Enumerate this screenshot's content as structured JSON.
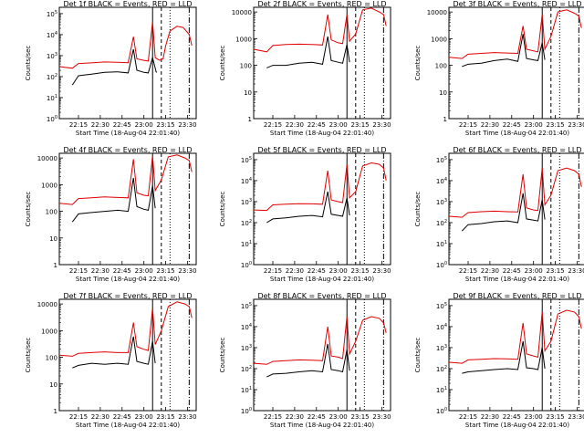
{
  "colors": {
    "events": "#000000",
    "lld": "#e00000",
    "axes": "#000000",
    "background": "#ffffff"
  },
  "xlabel": "Start Time (18-Aug-04 22:01:40)",
  "ylabel": "Counts/sec",
  "chart_data": [
    {
      "type": "line",
      "title": "Det 1f BLACK = Events, RED = LLD",
      "x_ticks": [
        "22:15",
        "22:30",
        "22:45",
        "23:00",
        "23:15",
        "23:30"
      ],
      "y_ticks": [
        "10^0",
        "10^1",
        "10^2",
        "10^3",
        "10^4",
        "10^5"
      ],
      "ylim": [
        1,
        200000
      ],
      "yscale": "log",
      "series": [
        {
          "name": "Events",
          "x": [
            22.18,
            22.25,
            22.4,
            22.55,
            22.7,
            22.82,
            22.88,
            22.92,
            23.0,
            23.05,
            23.1,
            23.14,
            23.15
          ],
          "values": [
            40,
            110,
            130,
            160,
            170,
            150,
            2000,
            200,
            160,
            150,
            800,
            170,
            160
          ]
        },
        {
          "name": "LLD",
          "x": [
            22.03,
            22.18,
            22.25,
            22.4,
            22.55,
            22.7,
            22.82,
            22.88,
            22.92,
            23.0,
            23.05,
            23.1,
            23.13,
            23.18,
            23.22,
            23.25,
            23.3,
            23.38,
            23.45,
            23.52,
            23.55
          ],
          "values": [
            300,
            250,
            420,
            450,
            500,
            480,
            460,
            8000,
            700,
            600,
            550,
            40000,
            800,
            600,
            700,
            3000,
            15000,
            25000,
            22000,
            10000,
            3000
          ]
        }
      ],
      "markers": [
        22.03,
        23.1,
        23.2,
        23.3,
        23.52
      ]
    },
    {
      "type": "line",
      "title": "Det 2f BLACK = Events, RED = LLD",
      "x_ticks": [
        "22:15",
        "22:30",
        "22:45",
        "23:00",
        "23:15",
        "23:30"
      ],
      "y_ticks": [
        "1",
        "10",
        "100",
        "1000",
        "10000"
      ],
      "ylim": [
        1,
        15000
      ],
      "yscale": "log",
      "series": [
        {
          "name": "Events",
          "x": [
            22.18,
            22.25,
            22.4,
            22.55,
            22.7,
            22.82,
            22.88,
            22.92,
            23.0,
            23.05,
            23.1,
            23.13
          ],
          "values": [
            80,
            100,
            100,
            120,
            130,
            110,
            1200,
            150,
            130,
            120,
            600,
            130
          ]
        },
        {
          "name": "LLD",
          "x": [
            22.03,
            22.18,
            22.25,
            22.4,
            22.55,
            22.7,
            22.82,
            22.88,
            22.92,
            23.0,
            23.05,
            23.1,
            23.13,
            23.2,
            23.28,
            23.38,
            23.47,
            23.52,
            23.55
          ],
          "values": [
            400,
            320,
            550,
            600,
            620,
            600,
            580,
            8000,
            900,
            700,
            650,
            8000,
            800,
            1500,
            12000,
            14000,
            10000,
            8000,
            3000
          ]
        }
      ],
      "markers": [
        22.03,
        23.1,
        23.2,
        23.3,
        23.52
      ]
    },
    {
      "type": "line",
      "title": "Det 3f BLACK = Events, RED = LLD",
      "x_ticks": [
        "22:15",
        "22:30",
        "22:45",
        "23:00",
        "23:15",
        "23:30"
      ],
      "y_ticks": [
        "1",
        "10",
        "100",
        "1000",
        "10000"
      ],
      "ylim": [
        1,
        15000
      ],
      "yscale": "log",
      "series": [
        {
          "name": "Events",
          "x": [
            22.18,
            22.25,
            22.4,
            22.55,
            22.7,
            22.82,
            22.88,
            22.92,
            23.0,
            23.05,
            23.1,
            23.13
          ],
          "values": [
            90,
            110,
            120,
            150,
            170,
            140,
            1500,
            180,
            160,
            150,
            700,
            160
          ]
        },
        {
          "name": "LLD",
          "x": [
            22.03,
            22.18,
            22.25,
            22.4,
            22.55,
            22.7,
            22.82,
            22.88,
            22.92,
            23.0,
            23.05,
            23.1,
            23.13,
            23.2,
            23.28,
            23.38,
            23.47,
            23.52,
            23.55
          ],
          "values": [
            200,
            180,
            260,
            280,
            300,
            290,
            280,
            3000,
            400,
            350,
            320,
            8000,
            400,
            1200,
            10000,
            12000,
            9000,
            7000,
            2500
          ]
        }
      ],
      "markers": [
        22.03,
        23.1,
        23.2,
        23.3,
        23.52
      ]
    },
    {
      "type": "line",
      "title": "Det 4f BLACK = Events, RED = LLD",
      "x_ticks": [
        "22:15",
        "22:30",
        "22:45",
        "23:00",
        "23:15",
        "23:30"
      ],
      "y_ticks": [
        "1",
        "10",
        "100",
        "1000",
        "10000"
      ],
      "ylim": [
        1,
        15000
      ],
      "yscale": "log",
      "series": [
        {
          "name": "Events",
          "x": [
            22.18,
            22.25,
            22.4,
            22.55,
            22.7,
            22.82,
            22.88,
            22.92,
            23.0,
            23.05,
            23.1,
            23.13
          ],
          "values": [
            40,
            80,
            90,
            100,
            110,
            100,
            1800,
            150,
            120,
            110,
            900,
            130
          ]
        },
        {
          "name": "LLD",
          "x": [
            22.03,
            22.18,
            22.25,
            22.4,
            22.55,
            22.7,
            22.82,
            22.88,
            22.92,
            23.0,
            23.05,
            23.1,
            23.13,
            23.2,
            23.28,
            23.38,
            23.47,
            23.52,
            23.55
          ],
          "values": [
            200,
            180,
            300,
            320,
            350,
            330,
            320,
            9000,
            500,
            400,
            380,
            12000,
            600,
            1500,
            11000,
            13000,
            10000,
            8000,
            3000
          ]
        }
      ],
      "markers": [
        22.03,
        23.1,
        23.2,
        23.3,
        23.52
      ]
    },
    {
      "type": "line",
      "title": "Det 5f BLACK = Events, RED = LLD",
      "x_ticks": [
        "22:15",
        "22:30",
        "22:45",
        "23:00",
        "23:15",
        "23:30"
      ],
      "y_ticks": [
        "10^0",
        "10^1",
        "10^2",
        "10^3",
        "10^4",
        "10^5"
      ],
      "ylim": [
        1,
        200000
      ],
      "yscale": "log",
      "series": [
        {
          "name": "Events",
          "x": [
            22.18,
            22.25,
            22.4,
            22.55,
            22.7,
            22.82,
            22.88,
            22.92,
            23.0,
            23.05,
            23.1,
            23.13
          ],
          "values": [
            100,
            150,
            170,
            200,
            220,
            190,
            3000,
            250,
            220,
            200,
            1500,
            220
          ]
        },
        {
          "name": "LLD",
          "x": [
            22.03,
            22.18,
            22.25,
            22.4,
            22.55,
            22.7,
            22.82,
            22.88,
            22.92,
            23.0,
            23.05,
            23.1,
            23.13,
            23.2,
            23.28,
            23.38,
            23.47,
            23.52,
            23.55
          ],
          "values": [
            400,
            380,
            700,
            750,
            800,
            780,
            750,
            30000,
            1200,
            1000,
            900,
            60000,
            1500,
            3000,
            50000,
            70000,
            60000,
            40000,
            10000
          ]
        }
      ],
      "markers": [
        22.03,
        23.1,
        23.2,
        23.3,
        23.52
      ]
    },
    {
      "type": "line",
      "title": "Det 6f BLACK = Events, RED = LLD",
      "x_ticks": [
        "22:15",
        "22:30",
        "22:45",
        "23:00",
        "23:15",
        "23:30"
      ],
      "y_ticks": [
        "10^0",
        "10^1",
        "10^2",
        "10^3",
        "10^4",
        "10^5"
      ],
      "ylim": [
        1,
        200000
      ],
      "yscale": "log",
      "series": [
        {
          "name": "Events",
          "x": [
            22.18,
            22.25,
            22.4,
            22.55,
            22.7,
            22.82,
            22.88,
            22.92,
            23.0,
            23.05,
            23.1,
            23.13
          ],
          "values": [
            40,
            80,
            90,
            110,
            120,
            100,
            2500,
            150,
            130,
            120,
            1200,
            140
          ]
        },
        {
          "name": "LLD",
          "x": [
            22.03,
            22.18,
            22.25,
            22.4,
            22.55,
            22.7,
            22.82,
            22.88,
            22.92,
            23.0,
            23.05,
            23.1,
            23.13,
            23.2,
            23.28,
            23.38,
            23.47,
            23.52,
            23.55
          ],
          "values": [
            200,
            180,
            300,
            330,
            350,
            330,
            320,
            20000,
            500,
            400,
            380,
            40000,
            700,
            2000,
            30000,
            40000,
            30000,
            20000,
            5000
          ]
        }
      ],
      "markers": [
        22.03,
        23.1,
        23.2,
        23.3,
        23.52
      ]
    },
    {
      "type": "line",
      "title": "Det 7f BLACK = Events, RED = LLD",
      "x_ticks": [
        "22:15",
        "22:30",
        "22:45",
        "23:00",
        "23:15",
        "23:30"
      ],
      "y_ticks": [
        "1",
        "10",
        "100",
        "1000",
        "10000"
      ],
      "ylim": [
        1,
        15000
      ],
      "yscale": "log",
      "series": [
        {
          "name": "Events",
          "x": [
            22.18,
            22.25,
            22.4,
            22.55,
            22.7,
            22.82,
            22.88,
            22.92,
            23.0,
            23.05,
            23.1,
            23.13
          ],
          "values": [
            40,
            50,
            60,
            55,
            60,
            55,
            600,
            70,
            60,
            55,
            400,
            60
          ]
        },
        {
          "name": "LLD",
          "x": [
            22.03,
            22.18,
            22.25,
            22.4,
            22.55,
            22.7,
            22.82,
            22.88,
            22.92,
            23.0,
            23.05,
            23.1,
            23.13,
            23.2,
            23.28,
            23.38,
            23.47,
            23.52,
            23.55
          ],
          "values": [
            120,
            110,
            140,
            150,
            160,
            150,
            150,
            2000,
            250,
            200,
            180,
            7000,
            300,
            1000,
            8000,
            12000,
            10000,
            8000,
            3000
          ]
        }
      ],
      "markers": [
        22.03,
        23.1,
        23.2,
        23.3,
        23.52
      ]
    },
    {
      "type": "line",
      "title": "Det 8f BLACK = Events, RED = LLD",
      "x_ticks": [
        "22:15",
        "22:30",
        "22:45",
        "23:00",
        "23:15",
        "23:30"
      ],
      "y_ticks": [
        "10^0",
        "10^1",
        "10^2",
        "10^3",
        "10^4",
        "10^5"
      ],
      "ylim": [
        1,
        200000
      ],
      "yscale": "log",
      "series": [
        {
          "name": "Events",
          "x": [
            22.18,
            22.25,
            22.4,
            22.55,
            22.7,
            22.82,
            22.88,
            22.92,
            23.0,
            23.05,
            23.1,
            23.13
          ],
          "values": [
            40,
            55,
            60,
            70,
            80,
            70,
            1500,
            90,
            80,
            70,
            800,
            80
          ]
        },
        {
          "name": "LLD",
          "x": [
            22.03,
            22.18,
            22.25,
            22.4,
            22.55,
            22.7,
            22.82,
            22.88,
            22.92,
            23.0,
            23.05,
            23.1,
            23.13,
            23.2,
            23.28,
            23.38,
            23.47,
            23.52,
            23.55
          ],
          "values": [
            180,
            160,
            220,
            240,
            260,
            250,
            240,
            10000,
            400,
            350,
            300,
            30000,
            500,
            2000,
            20000,
            30000,
            25000,
            15000,
            5000
          ]
        }
      ],
      "markers": [
        22.03,
        23.1,
        23.2,
        23.3,
        23.52
      ]
    },
    {
      "type": "line",
      "title": "Det 9f BLACK = Events, RED = LLD",
      "x_ticks": [
        "22:15",
        "22:30",
        "22:45",
        "23:00",
        "23:15",
        "23:30"
      ],
      "y_ticks": [
        "10^0",
        "10^1",
        "10^2",
        "10^3",
        "10^4",
        "10^5"
      ],
      "ylim": [
        1,
        200000
      ],
      "yscale": "log",
      "series": [
        {
          "name": "Events",
          "x": [
            22.18,
            22.25,
            22.4,
            22.55,
            22.7,
            22.82,
            22.88,
            22.92,
            23.0,
            23.05,
            23.1,
            23.13
          ],
          "values": [
            60,
            70,
            80,
            90,
            100,
            90,
            2000,
            110,
            100,
            90,
            1000,
            100
          ]
        },
        {
          "name": "LLD",
          "x": [
            22.03,
            22.18,
            22.25,
            22.4,
            22.55,
            22.7,
            22.82,
            22.88,
            22.92,
            23.0,
            23.05,
            23.1,
            23.13,
            23.2,
            23.28,
            23.38,
            23.47,
            23.52,
            23.55
          ],
          "values": [
            200,
            180,
            260,
            280,
            300,
            290,
            280,
            15000,
            500,
            400,
            350,
            50000,
            700,
            2000,
            40000,
            60000,
            50000,
            30000,
            8000
          ]
        }
      ],
      "markers": [
        22.03,
        23.1,
        23.2,
        23.3,
        23.52
      ]
    }
  ]
}
